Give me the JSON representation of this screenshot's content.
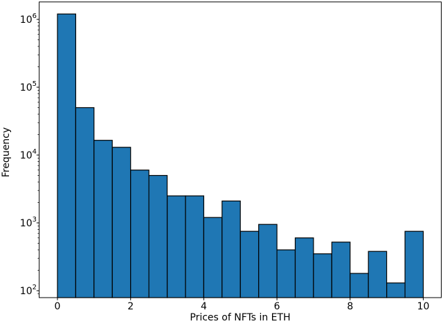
{
  "figure": {
    "background": "#ffffff"
  },
  "chart_data": {
    "type": "bar",
    "subtype": "histogram",
    "title": "",
    "xlabel": "Prices of NFTs in ETH",
    "ylabel": "Frequency",
    "x_scale": "linear",
    "y_scale": "log",
    "grid": false,
    "legend": false,
    "bin_start": 0,
    "bin_width": 0.5,
    "bin_edges": [
      0,
      0.5,
      1,
      1.5,
      2,
      2.5,
      3,
      3.5,
      4,
      4.5,
      5,
      5.5,
      6,
      6.5,
      7,
      7.5,
      8,
      8.5,
      9,
      9.5,
      10
    ],
    "counts": [
      1200000,
      50000,
      16500,
      13000,
      6000,
      5000,
      2500,
      2500,
      1200,
      2100,
      750,
      950,
      400,
      600,
      350,
      520,
      180,
      380,
      130,
      750
    ],
    "xlim": [
      -0.5,
      10.5
    ],
    "ylim": [
      80,
      1800000
    ],
    "x_tick_values": [
      0,
      2,
      4,
      6,
      8,
      10
    ],
    "x_tick_labels": [
      "0",
      "2",
      "4",
      "6",
      "8",
      "10"
    ],
    "y_ticks": [
      {
        "mantissa": "10",
        "exponent": "2",
        "value": 100
      },
      {
        "mantissa": "10",
        "exponent": "3",
        "value": 1000
      },
      {
        "mantissa": "10",
        "exponent": "4",
        "value": 10000
      },
      {
        "mantissa": "10",
        "exponent": "5",
        "value": 100000
      },
      {
        "mantissa": "10",
        "exponent": "6",
        "value": 1000000
      }
    ],
    "bar_color": "#1f77b4",
    "bar_edge_color": "#000000",
    "axis_color": "#000000",
    "text_color": "#000000"
  }
}
